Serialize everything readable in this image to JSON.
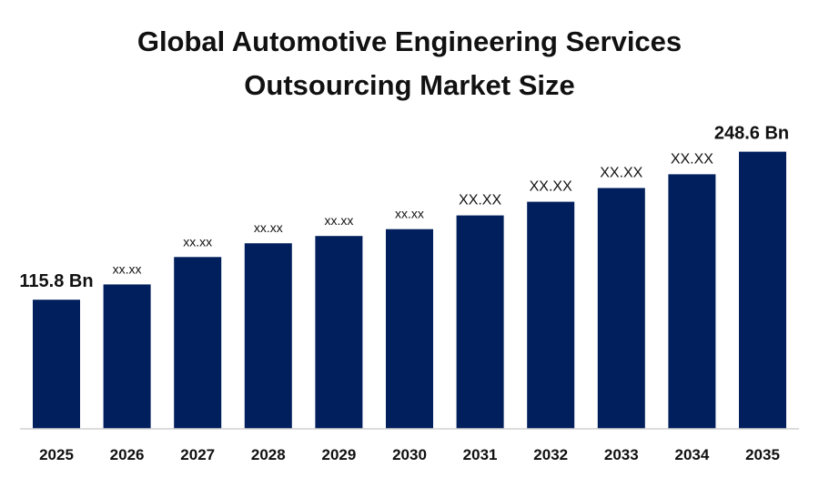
{
  "chart_data": {
    "type": "bar",
    "title": "Global Automotive Engineering Services Outsourcing Market Size",
    "title_lines": [
      "Global Automotive Engineering Services",
      "Outsourcing Market Size"
    ],
    "categories": [
      "2025",
      "2026",
      "2027",
      "2028",
      "2029",
      "2030",
      "2031",
      "2032",
      "2033",
      "2034",
      "2035"
    ],
    "values": [
      115.8,
      129.5,
      154.1,
      166.4,
      173.0,
      179.1,
      191.4,
      203.7,
      216.0,
      228.3,
      248.6
    ],
    "data_labels": [
      "115.8 Bn",
      "xx.xx",
      "xx.xx",
      "xx.xx",
      "xx.xx",
      "xx.xx",
      "XX.XX",
      "XX.XX",
      "XX.XX",
      "XX.XX",
      "248.6 Bn"
    ],
    "xlabel": "",
    "ylabel": "",
    "ylim": [
      0,
      260
    ],
    "grid": false,
    "legend": "none",
    "bar_color": "#001f5c"
  }
}
